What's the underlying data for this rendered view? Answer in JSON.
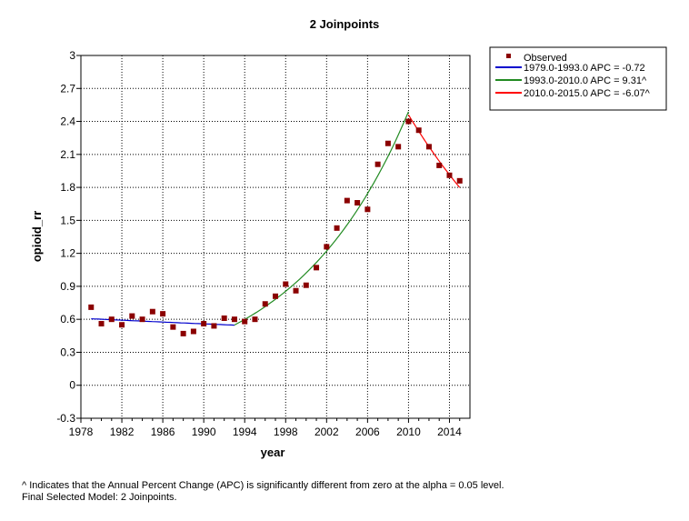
{
  "chart_data": {
    "type": "scatter",
    "title": "2 Joinpoints",
    "xlabel": "year",
    "ylabel": "opioid_rr",
    "xlim": [
      1978,
      2016
    ],
    "ylim": [
      -0.3,
      3.0
    ],
    "xticks": [
      "1978",
      "1982",
      "1986",
      "1990",
      "1994",
      "1998",
      "2002",
      "2006",
      "2010",
      "2014"
    ],
    "yticks": [
      "-0.3",
      "0",
      "0.3",
      "0.6",
      "0.9",
      "1.2",
      "1.5",
      "1.8",
      "2.1",
      "2.4",
      "2.7",
      "3"
    ],
    "grid": true,
    "legend_position": "right",
    "observed": {
      "name": "Observed",
      "color": "#8b0000",
      "x": [
        1979,
        1980,
        1981,
        1982,
        1983,
        1984,
        1985,
        1986,
        1987,
        1988,
        1989,
        1990,
        1991,
        1992,
        1993,
        1994,
        1995,
        1996,
        1997,
        1998,
        1999,
        2000,
        2001,
        2002,
        2003,
        2004,
        2005,
        2006,
        2007,
        2008,
        2009,
        2010,
        2011,
        2012,
        2013,
        2014,
        2015
      ],
      "y": [
        0.71,
        0.56,
        0.6,
        0.55,
        0.63,
        0.6,
        0.67,
        0.65,
        0.53,
        0.47,
        0.49,
        0.56,
        0.54,
        0.61,
        0.6,
        0.58,
        0.6,
        0.74,
        0.81,
        0.92,
        0.86,
        0.91,
        1.07,
        1.26,
        1.43,
        1.68,
        1.66,
        1.6,
        2.01,
        2.2,
        2.17,
        2.4,
        2.32,
        2.17,
        2.0,
        1.91,
        1.86
      ]
    },
    "series": [
      {
        "name": "1979.0-1993.0 APC  = -0.72",
        "color": "#0000cd",
        "x": [
          1979,
          1993
        ],
        "y0": 0.605,
        "apc": -0.72
      },
      {
        "name": "1993.0-2010.0 APC  =  9.31^",
        "color": "#228b22",
        "x": [
          1993,
          2010
        ],
        "y0": 0.548,
        "apc": 9.31
      },
      {
        "name": "2010.0-2015.0 APC  = -6.07^",
        "color": "#ff0000",
        "x": [
          2010,
          2015
        ],
        "y0": 2.46,
        "apc": -6.07
      }
    ]
  },
  "footnote": {
    "line1": "^ Indicates that the Annual Percent Change (APC) is significantly different from zero at the alpha = 0.05 level.",
    "line2": "Final Selected Model: 2 Joinpoints."
  }
}
